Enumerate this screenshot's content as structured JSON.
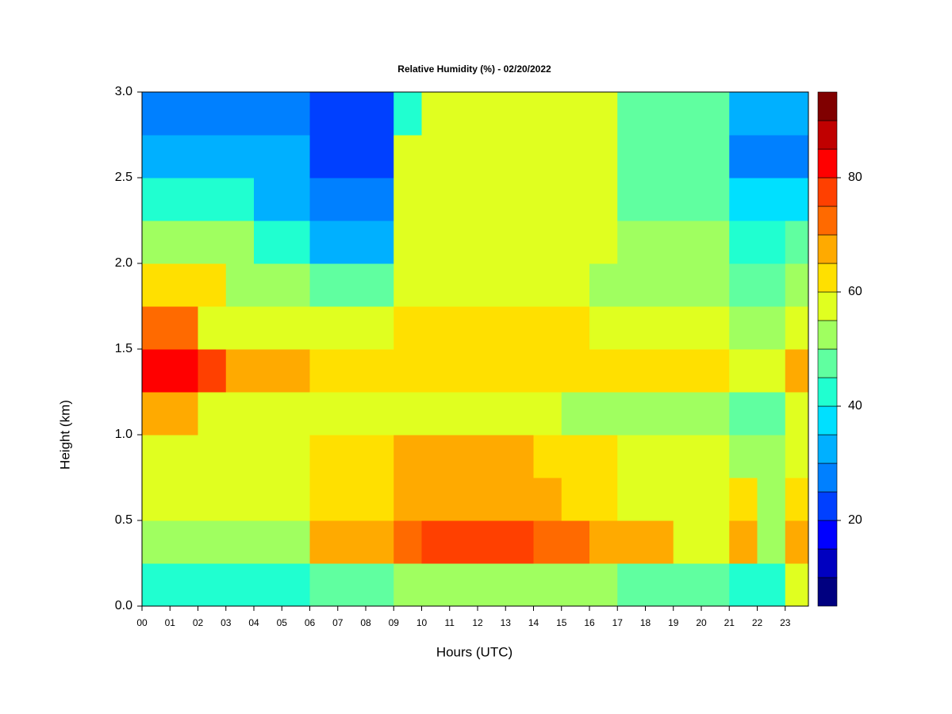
{
  "chart_data": {
    "type": "heatmap",
    "title": "Relative Humidity (%) - 02/20/2022",
    "x_label": "Hours (UTC)",
    "y_label": "Height (km)",
    "xlim": [
      0,
      23.83
    ],
    "ylim": [
      0,
      3
    ],
    "xticks": [
      {
        "value": 0,
        "label": "00"
      },
      {
        "value": 1,
        "label": "01"
      },
      {
        "value": 2,
        "label": "02"
      },
      {
        "value": 3,
        "label": "03"
      },
      {
        "value": 4,
        "label": "04"
      },
      {
        "value": 5,
        "label": "05"
      },
      {
        "value": 6,
        "label": "06"
      },
      {
        "value": 7,
        "label": "07"
      },
      {
        "value": 8,
        "label": "08"
      },
      {
        "value": 9,
        "label": "09"
      },
      {
        "value": 10,
        "label": "10"
      },
      {
        "value": 11,
        "label": "11"
      },
      {
        "value": 12,
        "label": "12"
      },
      {
        "value": 13,
        "label": "13"
      },
      {
        "value": 14,
        "label": "14"
      },
      {
        "value": 15,
        "label": "15"
      },
      {
        "value": 16,
        "label": "16"
      },
      {
        "value": 17,
        "label": "17"
      },
      {
        "value": 18,
        "label": "18"
      },
      {
        "value": 19,
        "label": "19"
      },
      {
        "value": 20,
        "label": "20"
      },
      {
        "value": 21,
        "label": "21"
      },
      {
        "value": 22,
        "label": "22"
      },
      {
        "value": 23,
        "label": "23"
      }
    ],
    "yticks": [
      {
        "value": 0,
        "label": "0.0"
      },
      0.5,
      {
        "value": 1,
        "label": "1.0"
      },
      1.5,
      {
        "value": 2,
        "label": "2.0"
      },
      2.5,
      {
        "value": 3,
        "label": "3.0"
      }
    ],
    "x": [
      0.5,
      1.5,
      2.5,
      3.5,
      4.5,
      5.5,
      6.5,
      7.5,
      8.5,
      9.5,
      10.5,
      11.5,
      12.5,
      13.5,
      14.5,
      15.5,
      16.5,
      17.5,
      18.5,
      19.5,
      20.5,
      21.5,
      22.5,
      23.5
    ],
    "y": [
      0.125,
      0.375,
      0.625,
      0.875,
      1.125,
      1.375,
      1.625,
      1.875,
      2.125,
      2.375,
      2.625,
      2.875
    ],
    "values": [
      [
        42,
        42,
        42,
        42,
        42,
        42,
        48,
        48,
        48,
        50,
        50,
        50,
        50,
        50,
        50,
        50,
        50,
        45,
        45,
        45,
        45,
        42,
        42,
        55
      ],
      [
        52,
        52,
        52,
        52,
        52,
        52,
        65,
        65,
        65,
        70,
        77,
        77,
        77,
        77,
        72,
        72,
        65,
        65,
        65,
        58,
        58,
        68,
        50,
        68
      ],
      [
        55,
        55,
        55,
        55,
        55,
        55,
        60,
        60,
        60,
        65,
        65,
        65,
        65,
        65,
        65,
        60,
        60,
        58,
        58,
        58,
        58,
        60,
        50,
        60
      ],
      [
        58,
        58,
        58,
        58,
        58,
        58,
        60,
        60,
        60,
        66,
        66,
        66,
        66,
        66,
        60,
        60,
        60,
        57,
        57,
        57,
        57,
        52,
        52,
        58
      ],
      [
        65,
        65,
        58,
        58,
        58,
        58,
        55,
        55,
        55,
        57,
        57,
        57,
        57,
        57,
        57,
        50,
        50,
        50,
        50,
        50,
        50,
        48,
        48,
        58
      ],
      [
        80,
        80,
        75,
        65,
        65,
        65,
        63,
        63,
        63,
        63,
        63,
        63,
        63,
        63,
        60,
        60,
        60,
        60,
        60,
        60,
        60,
        55,
        55,
        65
      ],
      [
        72,
        72,
        58,
        58,
        58,
        58,
        55,
        55,
        55,
        60,
        60,
        60,
        60,
        60,
        60,
        60,
        55,
        55,
        55,
        55,
        55,
        50,
        50,
        58
      ],
      [
        62,
        62,
        62,
        52,
        52,
        52,
        45,
        45,
        45,
        58,
        58,
        58,
        58,
        58,
        58,
        58,
        52,
        52,
        52,
        52,
        52,
        48,
        48,
        50
      ],
      [
        50,
        50,
        50,
        50,
        40,
        40,
        30,
        30,
        30,
        55,
        55,
        55,
        55,
        55,
        55,
        55,
        55,
        50,
        50,
        50,
        50,
        40,
        40,
        45
      ],
      [
        40,
        40,
        40,
        40,
        32,
        32,
        25,
        25,
        25,
        55,
        55,
        55,
        55,
        55,
        55,
        55,
        55,
        48,
        48,
        48,
        48,
        35,
        35,
        35
      ],
      [
        30,
        30,
        30,
        30,
        30,
        30,
        22,
        22,
        22,
        55,
        55,
        55,
        55,
        55,
        55,
        55,
        55,
        45,
        45,
        45,
        45,
        28,
        28,
        28
      ],
      [
        25,
        25,
        25,
        25,
        25,
        25,
        22,
        22,
        22,
        40,
        55,
        55,
        55,
        55,
        55,
        55,
        55,
        45,
        45,
        45,
        45,
        30,
        30,
        30
      ]
    ],
    "levels": [
      5,
      10,
      15,
      20,
      25,
      30,
      35,
      40,
      45,
      50,
      55,
      60,
      65,
      70,
      75,
      80,
      85,
      90,
      95
    ],
    "colors": [
      "#000080",
      "#0000c0",
      "#0000ff",
      "#0040ff",
      "#0080ff",
      "#00b0ff",
      "#00e0ff",
      "#20ffd0",
      "#60ffa0",
      "#a0ff60",
      "#e0ff20",
      "#ffe000",
      "#ffaa00",
      "#ff6a00",
      "#ff4000",
      "#ff0000",
      "#c00000",
      "#800000"
    ],
    "colorbar_ticks": [
      20,
      40,
      60,
      80
    ]
  }
}
